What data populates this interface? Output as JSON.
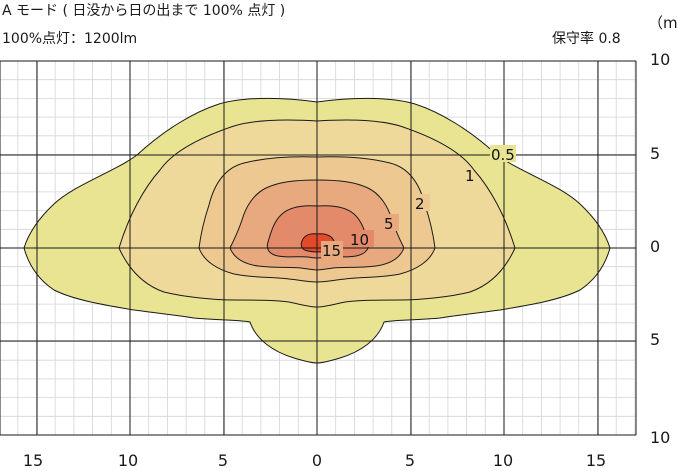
{
  "header": {
    "title": "A モード ( 日没から日の出まで 100% 点灯 )",
    "lumen": "100%点灯：1200lm",
    "maintenance": "保守率 0.8",
    "unit": "（m）"
  },
  "axes": {
    "y_labels": [
      "10",
      "5",
      "0",
      "5",
      "10"
    ],
    "x_labels": [
      "15",
      "10",
      "5",
      "0",
      "5",
      "10",
      "15"
    ]
  },
  "contours": [
    {
      "label": "0.5",
      "color": "#e8e492"
    },
    {
      "label": "1",
      "color": "#efd99a"
    },
    {
      "label": "2",
      "color": "#edc890"
    },
    {
      "label": "5",
      "color": "#e8a97e"
    },
    {
      "label": "10",
      "color": "#e38a6a"
    },
    {
      "label": "15",
      "color": "#e24a2a"
    }
  ]
}
